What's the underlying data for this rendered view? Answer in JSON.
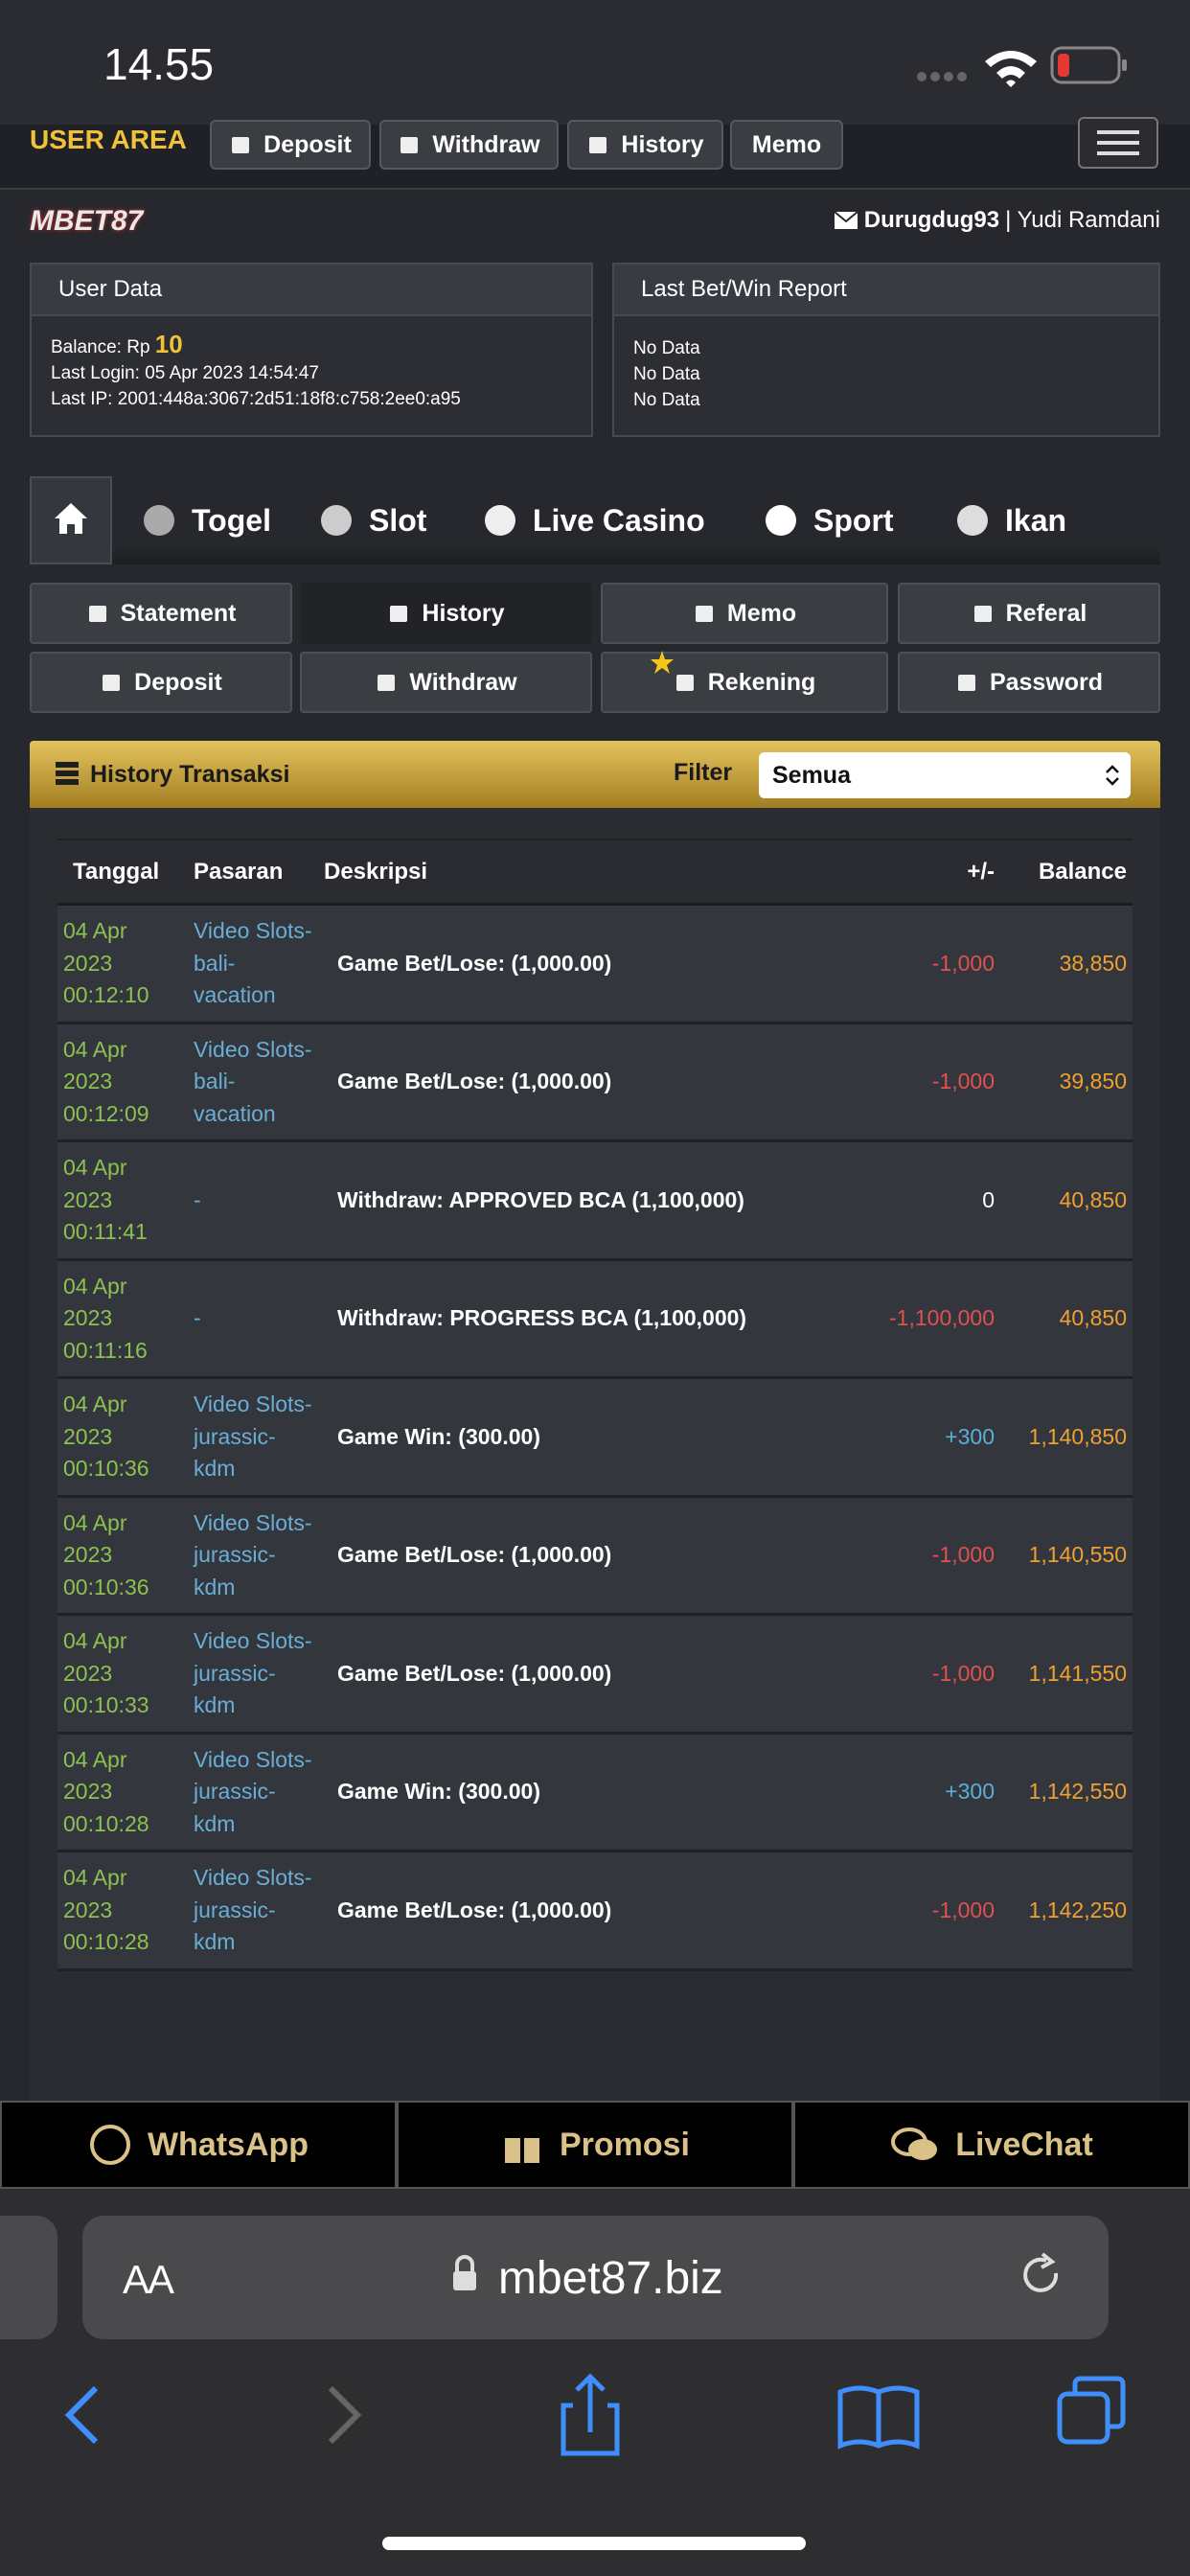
{
  "status_bar": {
    "time": "14.55"
  },
  "nav": {
    "title": "USER AREA",
    "buttons": [
      "Deposit",
      "Withdraw",
      "History",
      "Memo"
    ]
  },
  "header": {
    "logo": "MBET87",
    "username": "Durugdug93",
    "full_name": "| Yudi Ramdani"
  },
  "user_data": {
    "title": "User Data",
    "balance_label": "Balance: Rp",
    "balance": "10",
    "last_login": "Last Login: 05 Apr 2023 14:54:47",
    "last_ip": "Last IP: 2001:448a:3067:2d51:18f8:c758:2ee0:a95"
  },
  "report": {
    "title": "Last Bet/Win Report",
    "lines": [
      "No Data",
      "No Data",
      "No Data"
    ]
  },
  "game_tabs": [
    "Togel",
    "Slot",
    "Live Casino",
    "Sport",
    "Ikan"
  ],
  "menu": [
    "Statement",
    "History",
    "Memo",
    "Referal",
    "Deposit",
    "Withdraw",
    "Rekening",
    "Password"
  ],
  "history": {
    "title": "History Transaksi",
    "filter_label": "Filter",
    "filter_value": "Semua"
  },
  "table": {
    "headers": [
      "Tanggal",
      "Pasaran",
      "Deskripsi",
      "+/-",
      "Balance"
    ],
    "rows": [
      [
        "04 Apr 2023 00:12:10",
        "Video Slots-bali-vacation",
        "Game Bet/Lose: (1,000.00)",
        "-1,000",
        "38,850"
      ],
      [
        "04 Apr 2023 00:12:09",
        "Video Slots-bali-vacation",
        "Game Bet/Lose: (1,000.00)",
        "-1,000",
        "39,850"
      ],
      [
        "04 Apr 2023 00:11:41",
        "-",
        "Withdraw: APPROVED BCA (1,100,000)",
        "0",
        "40,850"
      ],
      [
        "04 Apr 2023 00:11:16",
        "-",
        "Withdraw: PROGRESS BCA (1,100,000)",
        "-1,100,000",
        "40,850"
      ],
      [
        "04 Apr 2023 00:10:36",
        "Video Slots-jurassic-kdm",
        "Game Win: (300.00)",
        "+300",
        "1,140,850"
      ],
      [
        "04 Apr 2023 00:10:36",
        "Video Slots-jurassic-kdm",
        "Game Bet/Lose: (1,000.00)",
        "-1,000",
        "1,140,550"
      ],
      [
        "04 Apr 2023 00:10:33",
        "Video Slots-jurassic-kdm",
        "Game Bet/Lose: (1,000.00)",
        "-1,000",
        "1,141,550"
      ],
      [
        "04 Apr 2023 00:10:28",
        "Video Slots-jurassic-kdm",
        "Game Win: (300.00)",
        "+300",
        "1,142,550"
      ],
      [
        "04 Apr 2023 00:10:28",
        "Video Slots-jurassic-kdm",
        "Game Bet/Lose: (1,000.00)",
        "-1,000",
        "1,142,250"
      ]
    ]
  },
  "bottom_bar": [
    "WhatsApp",
    "Promosi",
    "LiveChat"
  ],
  "browser": {
    "text_size": "AA",
    "url": "mbet87.biz"
  }
}
